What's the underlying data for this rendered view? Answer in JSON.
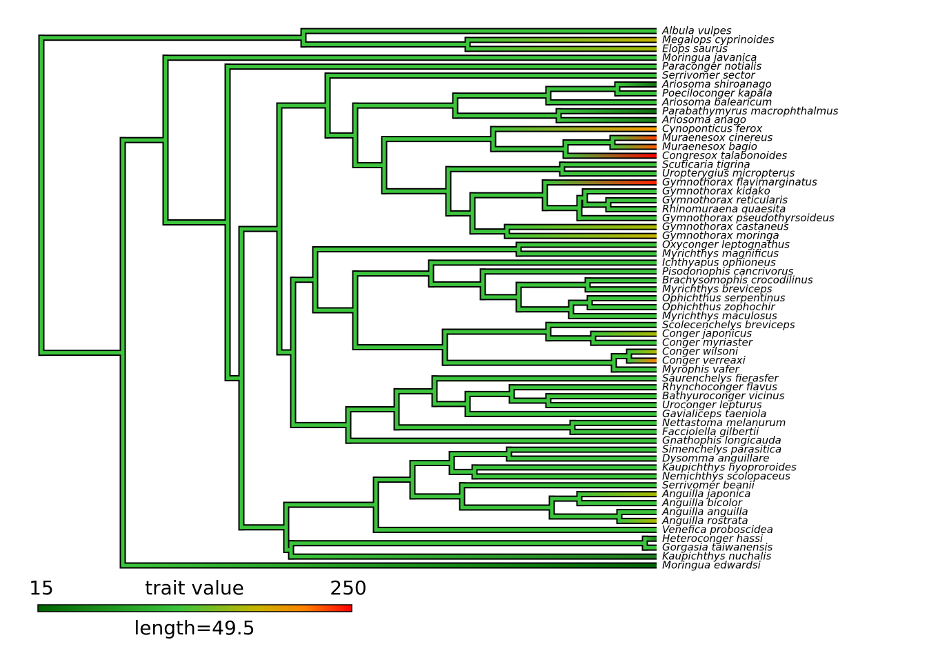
{
  "tips": [
    "Albula vulpes",
    "Megalops cyprinoides",
    "Elops saurus",
    "Moringua javanica",
    "Paraconger notialis",
    "Serrivomer sector",
    "Ariosoma shiroanago",
    "Poeciloconger kapala",
    "Ariosoma balearicum",
    "Parabathymyrus macrophthalmus",
    "Ariosoma anago",
    "Cynoponticus ferox",
    "Muraenesox cinereus",
    "Muraenesox bagio",
    "Congresox talabonoides",
    "Scuticaria tigrina",
    "Uropterygius micropterus",
    "Gymnothorax flavimarginatus",
    "Gymnothorax kidako",
    "Gymnothorax reticularis",
    "Rhinomuraena quaesita",
    "Gymnothorax pseudothyrsoideus",
    "Gymnothorax castaneus",
    "Gymnothorax moringa",
    "Oxyconger leptognathus",
    "Myrichthys magnificus",
    "Ichthyapus ophioneus",
    "Pisodonophis cancrivorus",
    "Brachysomophis crocodilinus",
    "Myrichthys breviceps",
    "Ophichthus serpentinus",
    "Ophichthus zophochir",
    "Myrichthys maculosus",
    "Scolecenchelys breviceps",
    "Conger japonicus",
    "Conger myriaster",
    "Conger wilsoni",
    "Conger verreaxi",
    "Myrophis vafer",
    "Saurenchelys fierasfer",
    "Rhynchoconger flavus",
    "Bathyuroconger vicinus",
    "Uroconger lepturus",
    "Gavialiceps taeniola",
    "Nettastoma melanurum",
    "Facciolella gilbertii",
    "Gnathophis longicauda",
    "Simenchelys parasitica",
    "Dysomma anguillare",
    "Kaupichthys hyoproroides",
    "Nemichthys scolopaceus",
    "Serrivomer beanii",
    "Anguilla japonica",
    "Anguilla bicolor",
    "Anguilla anguilla",
    "Anguilla rostrata",
    "Venefica proboscidea",
    "Heteroconger hassi",
    "Gorgasia taiwanensis",
    "Kaupichthys nuchalis",
    "Moringua edwardsi"
  ],
  "legend": {
    "min": "15",
    "title": "trait value",
    "max": "250",
    "scale": "length=49.5"
  }
}
